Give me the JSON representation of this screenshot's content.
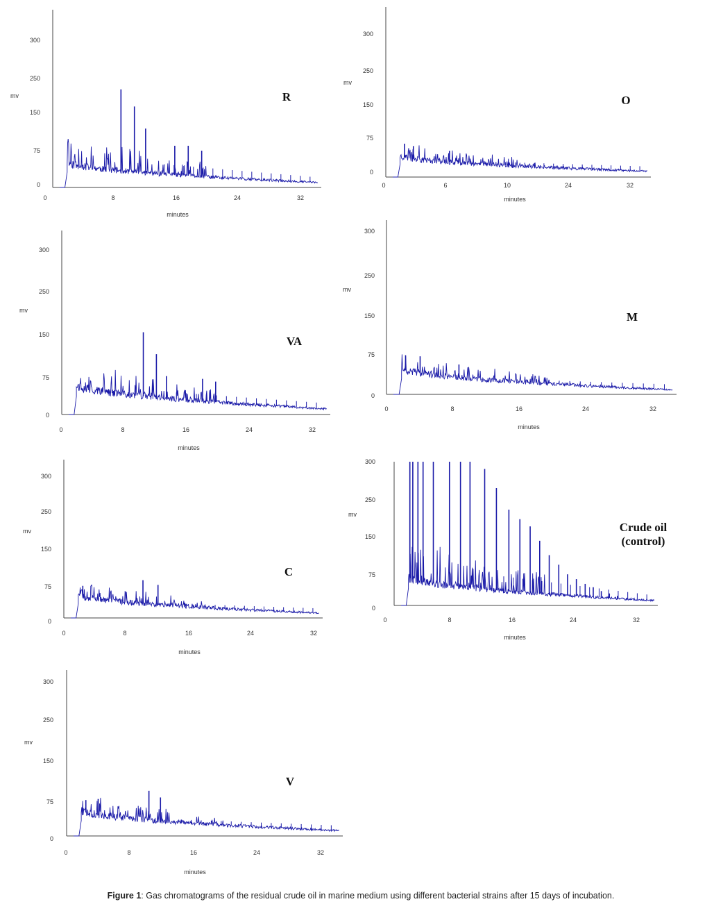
{
  "caption": {
    "prefix": "Figure 1",
    "text": ": Gas chromatograms of the residual crude oil in marine medium using different bacterial strains after 15 days of incubation."
  },
  "colors": {
    "trace": "#1a1aa8",
    "axis": "#444444",
    "ghost": "#e8e8b0"
  },
  "chart_data": [
    {
      "type": "line",
      "label": "R",
      "xlabel": "minutes",
      "ylabel": "mv",
      "xticks": [
        "0",
        "8",
        "16",
        "24",
        "32"
      ],
      "yticks": [
        "300",
        "250",
        "150",
        "75",
        "0"
      ],
      "xlim": [
        0,
        35
      ],
      "ylim": [
        0,
        320
      ],
      "trace": {
        "peak_max": 200,
        "baseline_start": 52,
        "baseline_end": 10,
        "seed": 11
      },
      "major_peaks": [
        {
          "x": 8.2,
          "y": 200
        },
        {
          "x": 10.0,
          "y": 165
        },
        {
          "x": 11.5,
          "y": 120
        },
        {
          "x": 15.4,
          "y": 85
        },
        {
          "x": 17.2,
          "y": 85
        },
        {
          "x": 19.0,
          "y": 75
        }
      ]
    },
    {
      "type": "line",
      "label": "O",
      "xlabel": "minutes",
      "ylabel": "mv",
      "xticks": [
        "0",
        "6",
        "10",
        "24",
        "32"
      ],
      "yticks": [
        "300",
        "250",
        "150",
        "75",
        "0"
      ],
      "xlim": [
        0,
        35
      ],
      "ylim": [
        0,
        320
      ],
      "trace": {
        "peak_max": 72,
        "baseline_start": 45,
        "baseline_end": 12,
        "seed": 23
      },
      "major_peaks": [
        {
          "x": 1.6,
          "y": 70
        },
        {
          "x": 2.8,
          "y": 65
        },
        {
          "x": 7.7,
          "y": 55
        }
      ]
    },
    {
      "type": "line",
      "label": "VA",
      "xlabel": "minutes",
      "ylabel": "mv",
      "xticks": [
        "0",
        "8",
        "16",
        "24",
        "32"
      ],
      "yticks": [
        "300",
        "250",
        "150",
        "75",
        "0"
      ],
      "xlim": [
        0,
        34
      ],
      "ylim": [
        0,
        320
      ],
      "trace": {
        "peak_max": 150,
        "baseline_start": 55,
        "baseline_end": 10,
        "seed": 37
      },
      "major_peaks": [
        {
          "x": 9.7,
          "y": 150
        },
        {
          "x": 11.4,
          "y": 110
        },
        {
          "x": 12.7,
          "y": 70
        },
        {
          "x": 17.4,
          "y": 65
        },
        {
          "x": 19.1,
          "y": 60
        }
      ]
    },
    {
      "type": "line",
      "label": "M",
      "xlabel": "minutes",
      "ylabel": "mv",
      "xticks": [
        "0",
        "8",
        "16",
        "24",
        "32"
      ],
      "yticks": [
        "300",
        "250",
        "150",
        "75",
        "0"
      ],
      "xlim": [
        0,
        35
      ],
      "ylim": [
        0,
        320
      ],
      "trace": {
        "peak_max": 75,
        "baseline_start": 48,
        "baseline_end": 8,
        "seed": 41
      },
      "major_peaks": [
        {
          "x": 1.5,
          "y": 72
        },
        {
          "x": 3.3,
          "y": 70
        },
        {
          "x": 8.1,
          "y": 55
        }
      ]
    },
    {
      "type": "line",
      "label": "C",
      "xlabel": "minutes",
      "ylabel": "mv",
      "xticks": [
        "0",
        "8",
        "16",
        "24",
        "32"
      ],
      "yticks": [
        "300",
        "250",
        "150",
        "75",
        "0"
      ],
      "xlim": [
        0,
        33.5
      ],
      "ylim": [
        0,
        320
      ],
      "trace": {
        "peak_max": 80,
        "baseline_start": 50,
        "baseline_end": 10,
        "seed": 53
      },
      "major_peaks": [
        {
          "x": 9.6,
          "y": 80
        },
        {
          "x": 11.6,
          "y": 70
        },
        {
          "x": 1.6,
          "y": 68
        }
      ]
    },
    {
      "type": "line",
      "label": "Crude oil (control)",
      "label_lines": [
        "Crude oil",
        "(control)"
      ],
      "xlabel": "minutes",
      "ylabel": "mv",
      "xticks": [
        "0",
        "8",
        "16",
        "24",
        "32"
      ],
      "yticks": [
        "300",
        "250",
        "150",
        "75",
        "0"
      ],
      "xlim": [
        0,
        35
      ],
      "ylim": [
        0,
        320
      ],
      "trace": {
        "peak_max": 300,
        "baseline_start": 60,
        "baseline_end": 10,
        "seed": 67
      },
      "major_peaks": [
        {
          "x": 1.2,
          "y": 300
        },
        {
          "x": 1.6,
          "y": 300
        },
        {
          "x": 2.3,
          "y": 300
        },
        {
          "x": 3.0,
          "y": 300
        },
        {
          "x": 4.4,
          "y": 300
        },
        {
          "x": 6.6,
          "y": 300
        },
        {
          "x": 8.1,
          "y": 300
        },
        {
          "x": 9.4,
          "y": 300
        },
        {
          "x": 11.4,
          "y": 285
        },
        {
          "x": 13.0,
          "y": 245
        },
        {
          "x": 14.7,
          "y": 200
        },
        {
          "x": 16.2,
          "y": 180
        },
        {
          "x": 17.6,
          "y": 165
        },
        {
          "x": 18.9,
          "y": 135
        },
        {
          "x": 20.2,
          "y": 105
        },
        {
          "x": 21.5,
          "y": 85
        },
        {
          "x": 22.7,
          "y": 65
        },
        {
          "x": 23.9,
          "y": 55
        },
        {
          "x": 25.1,
          "y": 45
        },
        {
          "x": 26.2,
          "y": 38
        },
        {
          "x": 27.3,
          "y": 30
        },
        {
          "x": 28.4,
          "y": 25
        },
        {
          "x": 29.5,
          "y": 20
        }
      ]
    },
    {
      "type": "line",
      "label": "V",
      "xlabel": "minutes",
      "ylabel": "mv",
      "xticks": [
        "0",
        "8",
        "16",
        "24",
        "32"
      ],
      "yticks": [
        "300",
        "250",
        "150",
        "75",
        "0"
      ],
      "xlim": [
        0,
        35
      ],
      "ylim": [
        0,
        320
      ],
      "trace": {
        "peak_max": 88,
        "baseline_start": 50,
        "baseline_end": 10,
        "seed": 79
      },
      "major_peaks": [
        {
          "x": 9.8,
          "y": 88
        },
        {
          "x": 11.3,
          "y": 75
        },
        {
          "x": 1.6,
          "y": 70
        },
        {
          "x": 3.2,
          "y": 72
        }
      ]
    }
  ]
}
